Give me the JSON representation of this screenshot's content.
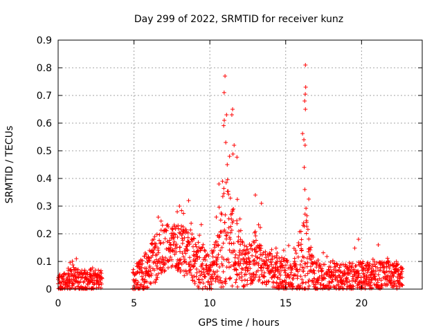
{
  "chart_data": {
    "type": "scatter",
    "title": "Day 299 of 2022, SRMTID for receiver kunz",
    "xlabel": "GPS time / hours",
    "ylabel": "SRMTID / TECUs",
    "xlim": [
      0,
      24
    ],
    "ylim": [
      0,
      0.9
    ],
    "xticks": [
      0,
      5,
      10,
      15,
      20
    ],
    "xtick_labels": [
      "0",
      "5",
      "10",
      "15",
      "20"
    ],
    "yticks": [
      0,
      0.1,
      0.2,
      0.3,
      0.4,
      0.5,
      0.6,
      0.7,
      0.8,
      0.9
    ],
    "ytick_labels": [
      "0",
      "0.1",
      "0.2",
      "0.3",
      "0.4",
      "0.5",
      "0.6",
      "0.7",
      "0.8",
      "0.9"
    ],
    "grid": true,
    "marker": "+",
    "series_color": "#ff0000",
    "data_gap": [
      2.9,
      4.9
    ],
    "envelope": [
      {
        "x": 0.0,
        "base": 0.02,
        "spread": 0.03,
        "max": 0.07
      },
      {
        "x": 0.5,
        "base": 0.03,
        "spread": 0.04,
        "max": 0.08
      },
      {
        "x": 1.0,
        "base": 0.04,
        "spread": 0.05,
        "max": 0.11
      },
      {
        "x": 1.5,
        "base": 0.02,
        "spread": 0.04,
        "max": 0.07
      },
      {
        "x": 2.0,
        "base": 0.03,
        "spread": 0.04,
        "max": 0.09
      },
      {
        "x": 2.9,
        "base": 0.03,
        "spread": 0.04,
        "max": 0.09
      },
      {
        "x": 5.0,
        "base": 0.03,
        "spread": 0.05,
        "max": 0.1
      },
      {
        "x": 5.5,
        "base": 0.05,
        "spread": 0.06,
        "max": 0.12
      },
      {
        "x": 6.0,
        "base": 0.08,
        "spread": 0.08,
        "max": 0.18
      },
      {
        "x": 6.5,
        "base": 0.12,
        "spread": 0.09,
        "max": 0.26
      },
      {
        "x": 7.0,
        "base": 0.14,
        "spread": 0.08,
        "max": 0.24
      },
      {
        "x": 7.5,
        "base": 0.16,
        "spread": 0.08,
        "max": 0.26
      },
      {
        "x": 8.0,
        "base": 0.15,
        "spread": 0.09,
        "max": 0.3
      },
      {
        "x": 8.5,
        "base": 0.14,
        "spread": 0.1,
        "max": 0.32
      },
      {
        "x": 9.0,
        "base": 0.1,
        "spread": 0.09,
        "max": 0.24
      },
      {
        "x": 9.5,
        "base": 0.08,
        "spread": 0.09,
        "max": 0.24
      },
      {
        "x": 10.0,
        "base": 0.05,
        "spread": 0.06,
        "max": 0.15
      },
      {
        "x": 10.5,
        "base": 0.1,
        "spread": 0.09,
        "max": 0.38
      },
      {
        "x": 11.0,
        "base": 0.2,
        "spread": 0.2,
        "max": 0.77
      },
      {
        "x": 11.5,
        "base": 0.16,
        "spread": 0.15,
        "max": 0.65
      },
      {
        "x": 12.0,
        "base": 0.1,
        "spread": 0.1,
        "max": 0.38
      },
      {
        "x": 12.5,
        "base": 0.08,
        "spread": 0.07,
        "max": 0.22
      },
      {
        "x": 13.0,
        "base": 0.12,
        "spread": 0.09,
        "max": 0.34
      },
      {
        "x": 13.5,
        "base": 0.08,
        "spread": 0.06,
        "max": 0.2
      },
      {
        "x": 14.0,
        "base": 0.07,
        "spread": 0.06,
        "max": 0.2
      },
      {
        "x": 14.5,
        "base": 0.06,
        "spread": 0.06,
        "max": 0.18
      },
      {
        "x": 15.0,
        "base": 0.05,
        "spread": 0.06,
        "max": 0.18
      },
      {
        "x": 15.5,
        "base": 0.05,
        "spread": 0.05,
        "max": 0.15
      },
      {
        "x": 16.0,
        "base": 0.1,
        "spread": 0.12,
        "max": 0.54
      },
      {
        "x": 16.3,
        "base": 0.15,
        "spread": 0.18,
        "max": 0.81
      },
      {
        "x": 16.6,
        "base": 0.08,
        "spread": 0.07,
        "max": 0.27
      },
      {
        "x": 17.0,
        "base": 0.05,
        "spread": 0.06,
        "max": 0.15
      },
      {
        "x": 18.0,
        "base": 0.05,
        "spread": 0.05,
        "max": 0.15
      },
      {
        "x": 19.0,
        "base": 0.04,
        "spread": 0.05,
        "max": 0.12
      },
      {
        "x": 20.0,
        "base": 0.05,
        "spread": 0.05,
        "max": 0.18
      },
      {
        "x": 21.0,
        "base": 0.05,
        "spread": 0.05,
        "max": 0.15
      },
      {
        "x": 22.0,
        "base": 0.05,
        "spread": 0.05,
        "max": 0.12
      },
      {
        "x": 22.7,
        "base": 0.05,
        "spread": 0.05,
        "max": 0.11
      }
    ],
    "peaks": [
      {
        "x": 11.0,
        "y": 0.77
      },
      {
        "x": 11.1,
        "y": 0.63
      },
      {
        "x": 10.95,
        "y": 0.61
      },
      {
        "x": 11.5,
        "y": 0.65
      },
      {
        "x": 11.45,
        "y": 0.63
      },
      {
        "x": 11.05,
        "y": 0.53
      },
      {
        "x": 11.3,
        "y": 0.48
      },
      {
        "x": 11.6,
        "y": 0.52
      },
      {
        "x": 16.3,
        "y": 0.81
      },
      {
        "x": 16.32,
        "y": 0.73
      },
      {
        "x": 16.25,
        "y": 0.68
      },
      {
        "x": 16.3,
        "y": 0.65
      },
      {
        "x": 16.2,
        "y": 0.54
      },
      {
        "x": 16.28,
        "y": 0.52
      },
      {
        "x": 16.22,
        "y": 0.44
      },
      {
        "x": 16.26,
        "y": 0.36
      },
      {
        "x": 8.6,
        "y": 0.32
      },
      {
        "x": 8.0,
        "y": 0.3
      },
      {
        "x": 13.0,
        "y": 0.34
      },
      {
        "x": 13.4,
        "y": 0.31
      },
      {
        "x": 6.6,
        "y": 0.26
      },
      {
        "x": 10.6,
        "y": 0.38
      },
      {
        "x": 21.1,
        "y": 0.16
      },
      {
        "x": 19.8,
        "y": 0.18
      },
      {
        "x": 1.2,
        "y": 0.11
      },
      {
        "x": 5.0,
        "y": 0.0
      }
    ]
  }
}
